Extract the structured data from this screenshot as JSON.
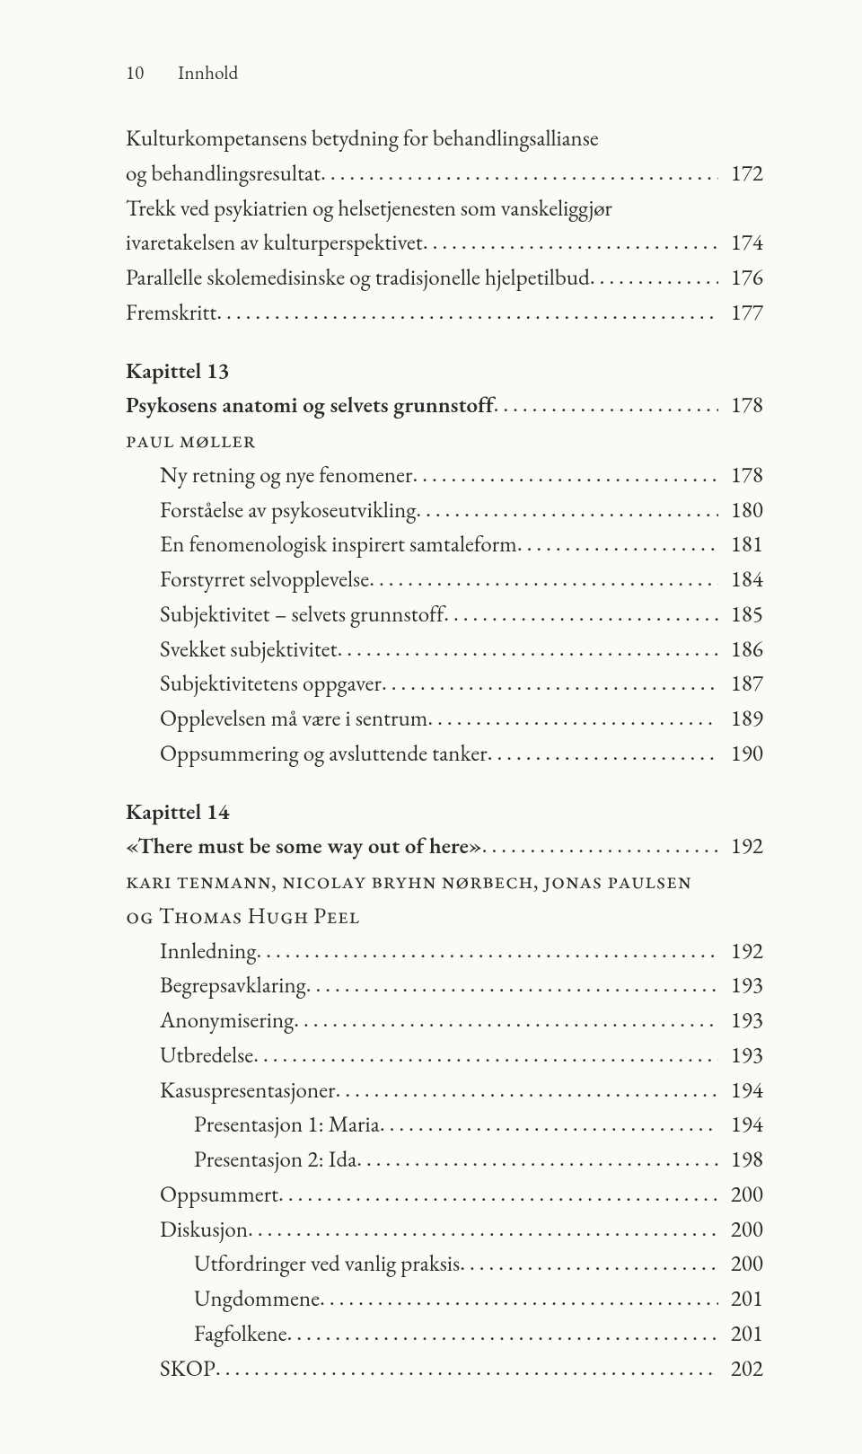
{
  "page": {
    "number": "10",
    "running_head": "Innhold"
  },
  "top": [
    {
      "label_line1": "Kulturkompetansens betydning for behandlingsallianse",
      "label_line2": "og behandlingsresultat",
      "page": "172",
      "wrap": true
    },
    {
      "label_line1": "Trekk ved psykiatrien og helsetjenesten som vanskeliggjør",
      "label_line2": "ivaretakelsen av kulturperspektivet",
      "page": "174",
      "wrap": true
    },
    {
      "label": "Parallelle skolemedisinske og tradisjonelle hjelpetilbud",
      "page": "176"
    },
    {
      "label": "Fremskritt",
      "page": "177"
    }
  ],
  "ch13": {
    "heading": "Kapittel 13",
    "title": "Psykosens anatomi og selvets grunnstoff",
    "title_page": "178",
    "author": "paul møller",
    "items": [
      {
        "label": "Ny retning og nye fenomener",
        "page": "178"
      },
      {
        "label": "Forståelse av psykoseutvikling",
        "page": "180"
      },
      {
        "label": "En fenomenologisk inspirert samtaleform",
        "page": "181"
      },
      {
        "label": "Forstyrret selvopplevelse",
        "page": "184"
      },
      {
        "label": "Subjektivitet – selvets grunnstoff",
        "page": "185"
      },
      {
        "label": "Svekket subjektivitet",
        "page": "186"
      },
      {
        "label": "Subjektivitetens oppgaver",
        "page": "187"
      },
      {
        "label": "Opplevelsen må være i sentrum",
        "page": "189"
      },
      {
        "label": "Oppsummering og avsluttende tanker",
        "page": "190"
      }
    ]
  },
  "ch14": {
    "heading": "Kapittel 14",
    "title": "«There must be some way out of here»",
    "title_page": "192",
    "author_line1": "kari tenmann, nicolay bryhn nørbech, jonas paulsen",
    "author_line2": "og Thomas Hugh Peel",
    "items": [
      {
        "label": "Innledning",
        "page": "192",
        "indent": 1
      },
      {
        "label": "Begrepsavklaring",
        "page": "193",
        "indent": 1
      },
      {
        "label": "Anonymisering",
        "page": "193",
        "indent": 1
      },
      {
        "label": "Utbredelse",
        "page": "193",
        "indent": 1
      },
      {
        "label": "Kasuspresentasjoner",
        "page": "194",
        "indent": 1
      },
      {
        "label": "Presentasjon 1: Maria",
        "page": "194",
        "indent": 2
      },
      {
        "label": "Presentasjon 2: Ida",
        "page": "198",
        "indent": 2
      },
      {
        "label": "Oppsummert",
        "page": "200",
        "indent": 1
      },
      {
        "label": "Diskusjon",
        "page": "200",
        "indent": 1
      },
      {
        "label": "Utfordringer ved vanlig praksis",
        "page": "200",
        "indent": 2
      },
      {
        "label": "Ungdommene",
        "page": "201",
        "indent": 2
      },
      {
        "label": "Fagfolkene",
        "page": "201",
        "indent": 2
      },
      {
        "label": "SKOP",
        "page": "202",
        "indent": 1
      }
    ]
  }
}
